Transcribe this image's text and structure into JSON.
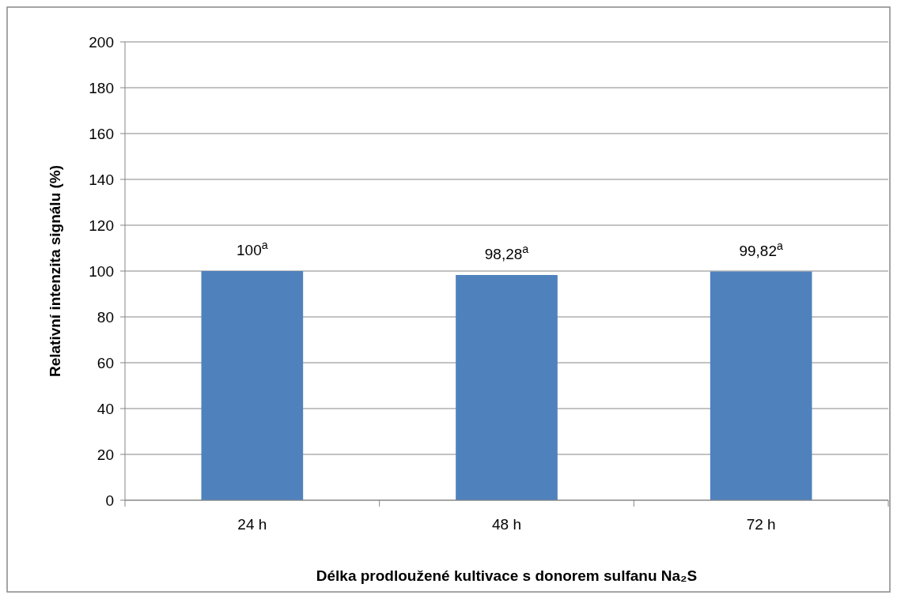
{
  "chart_data": {
    "type": "bar",
    "ylabel": "Relativní intenzita signálu (%)",
    "xlabel": "Délka prodloužené kultivace s donorem sulfanu Na₂S",
    "categories": [
      "24 h",
      "48 h",
      "72 h"
    ],
    "values": [
      100,
      98.28,
      99.82
    ],
    "value_labels": [
      "100$^{a}$",
      "98,28$^{a}$",
      "99,82$^{a}$"
    ],
    "color": "#4f81bd",
    "ylim": [
      0,
      200
    ],
    "yticks": [
      0,
      20,
      40,
      60,
      80,
      100,
      120,
      140,
      160,
      180,
      200
    ],
    "grid": "y"
  }
}
